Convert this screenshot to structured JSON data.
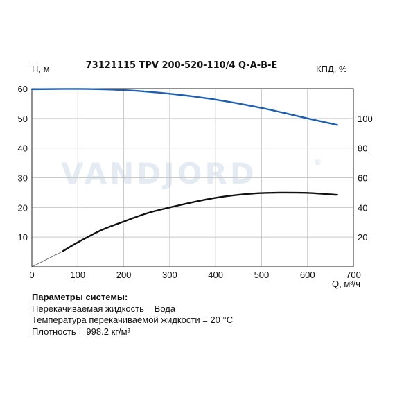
{
  "chart_data": {
    "type": "line",
    "title": "73121115 TPV 200-520-110/4 Q-A-B-E",
    "xlabel": "Q, м³/ч",
    "ylabel_left": "H, м",
    "ylabel_right": "КПД, %",
    "xlim": [
      0,
      700
    ],
    "ylim_left": [
      0,
      60
    ],
    "ylim_right": [
      0,
      120
    ],
    "x_ticks": [
      0,
      100,
      200,
      300,
      400,
      500,
      600,
      700
    ],
    "y_left_ticks": [
      10,
      20,
      30,
      40,
      50,
      60
    ],
    "y_right_ticks": [
      20,
      40,
      60,
      80,
      100
    ],
    "grid": true,
    "watermark": "VANDJORD",
    "series": [
      {
        "axis": "left",
        "color": "#1f5fb0",
        "x": [
          0,
          70,
          100,
          150,
          200,
          250,
          300,
          350,
          400,
          450,
          500,
          550,
          600,
          650,
          665
        ],
        "y": [
          59.8,
          59.9,
          59.9,
          59.8,
          59.5,
          59.0,
          58.3,
          57.4,
          56.3,
          55.0,
          53.5,
          51.8,
          50.0,
          48.3,
          47.8
        ]
      },
      {
        "axis": "right",
        "color": "#111111",
        "x": [
          67,
          100,
          150,
          200,
          250,
          300,
          350,
          400,
          450,
          500,
          550,
          600,
          650,
          665
        ],
        "y": [
          10.5,
          16.5,
          24.5,
          30.5,
          36.0,
          40.0,
          43.5,
          46.5,
          48.5,
          49.7,
          50.0,
          49.8,
          48.8,
          48.5
        ]
      }
    ],
    "thin_line": {
      "axis": "left",
      "x": [
        0,
        67
      ],
      "y": [
        0,
        5.2
      ],
      "color": "#555555"
    }
  },
  "params": {
    "heading": "Параметры системы:",
    "lines": [
      "Перекачиваемая жидкость = Вода",
      "Температура перекачиваемой жидкости = 20 °C",
      "Плотность = 998.2 кг/м³"
    ]
  }
}
